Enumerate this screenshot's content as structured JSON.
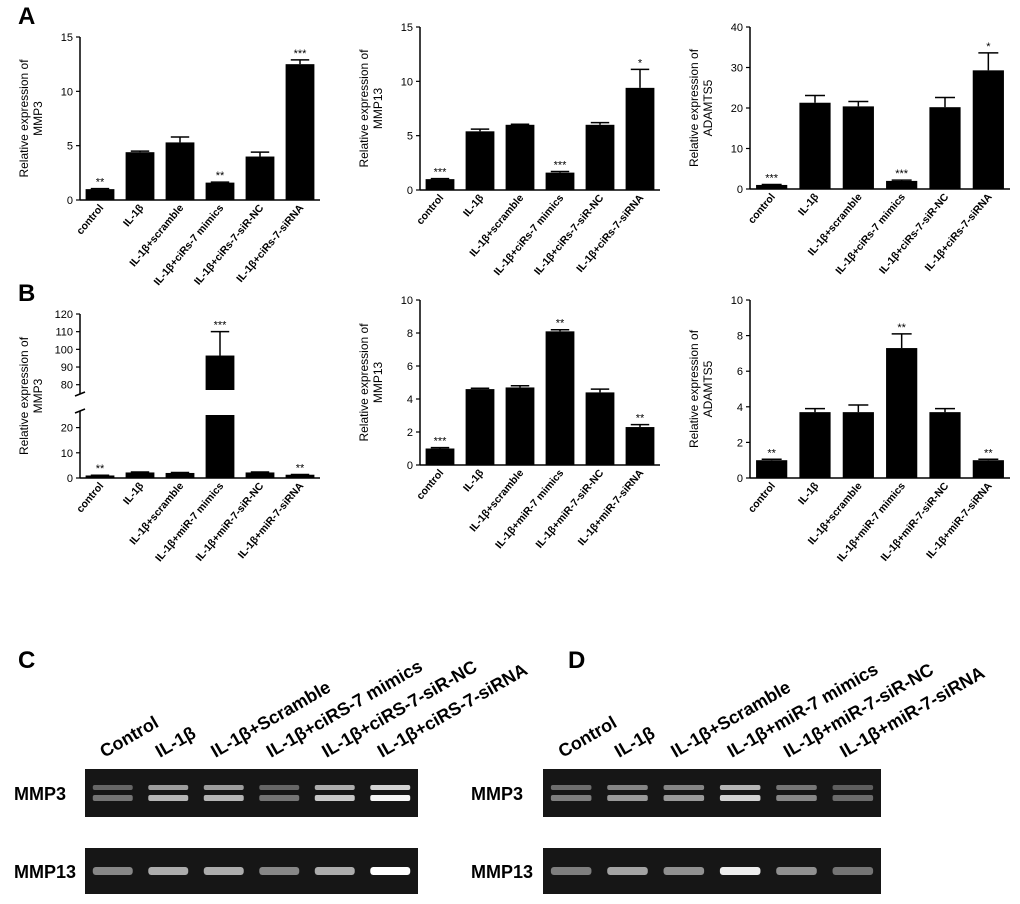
{
  "panel_labels": {
    "A": "A",
    "B": "B",
    "C": "C",
    "D": "D"
  },
  "chart_data": [
    {
      "id": "A1",
      "type": "bar",
      "ylabel": "Relative expression of MMP3",
      "ylabel_lines": [
        "Relative  expression of",
        "MMP3"
      ],
      "categories": [
        "control",
        "IL-1β",
        "IL-1β+scramble",
        "IL-1β+ciRs-7 mimics",
        "IL-1β+ciRs-7-siR-NC",
        "IL-1β+ciRs-7-siRNA"
      ],
      "values": [
        1.0,
        4.4,
        5.3,
        1.6,
        4.0,
        12.5
      ],
      "errors": [
        0.05,
        0.1,
        0.5,
        0.05,
        0.4,
        0.4
      ],
      "sig": [
        "**",
        "",
        "",
        "**",
        "",
        "***"
      ],
      "ylim": [
        0,
        15
      ],
      "yticks": [
        0,
        5,
        10,
        15
      ],
      "axis_break": null
    },
    {
      "id": "A2",
      "type": "bar",
      "ylabel": "Relative expression of MMP13",
      "ylabel_lines": [
        "Relative  expression of",
        "MMP13"
      ],
      "categories": [
        "control",
        "IL-1β",
        "IL-1β+scramble",
        "IL-1β+ciRs-7 mimics",
        "IL-1β+ciRs-7-siR-NC",
        "IL-1β+ciRs-7-siRNA"
      ],
      "values": [
        1.0,
        5.4,
        6.0,
        1.6,
        6.0,
        9.4
      ],
      "errors": [
        0.05,
        0.2,
        0.05,
        0.1,
        0.2,
        1.7
      ],
      "sig": [
        "***",
        "",
        "",
        "***",
        "",
        "*"
      ],
      "ylim": [
        0,
        15
      ],
      "yticks": [
        0,
        5,
        10,
        15
      ],
      "axis_break": null
    },
    {
      "id": "A3",
      "type": "bar",
      "ylabel": "Relative expression of ADAMTS5",
      "ylabel_lines": [
        "Relative  expression of",
        "ADAMTS5"
      ],
      "categories": [
        "control",
        "IL-1β",
        "IL-1β+scramble",
        "IL-1β+ciRs-7 mimics",
        "IL-1β+ciRs-7-siR-NC",
        "IL-1β+ciRs-7-siRNA"
      ],
      "values": [
        1.0,
        21.3,
        20.4,
        2.0,
        20.2,
        29.3
      ],
      "errors": [
        0.1,
        1.8,
        1.2,
        0.2,
        2.4,
        4.3
      ],
      "sig": [
        "***",
        "",
        "",
        "***",
        "",
        "*"
      ],
      "ylim": [
        0,
        40
      ],
      "yticks": [
        0,
        10,
        20,
        30,
        40
      ],
      "axis_break": null
    },
    {
      "id": "B1",
      "type": "bar",
      "ylabel": "Relative expression of MMP3",
      "ylabel_lines": [
        "Relative  expression of",
        "MMP3"
      ],
      "categories": [
        "control",
        "IL-1β",
        "IL-1β+scramble",
        "IL-1β+miR-7 mimics",
        "IL-1β+miR-7-siR-NC",
        "IL-1β+miR-7-siRNA"
      ],
      "values": [
        1.0,
        2.2,
        2.0,
        96.5,
        2.2,
        1.3
      ],
      "errors": [
        0.1,
        0.2,
        0.2,
        13.5,
        0.2,
        0.1
      ],
      "sig": [
        "**",
        "",
        "",
        "***",
        "",
        "**"
      ],
      "ylim": [
        0,
        120
      ],
      "yticks": [
        0,
        10,
        20,
        80,
        90,
        100,
        110,
        120
      ],
      "axis_break": {
        "low": [
          0,
          25
        ],
        "high": [
          77,
          120
        ]
      }
    },
    {
      "id": "B2",
      "type": "bar",
      "ylabel": "Relative expression of MMP13",
      "ylabel_lines": [
        "Relative  expression of",
        "MMP13"
      ],
      "categories": [
        "control",
        "IL-1β",
        "IL-1β+scramble",
        "IL-1β+miR-7 mimics",
        "IL-1β+miR-7-siR-NC",
        "IL-1β+miR-7-siRNA"
      ],
      "values": [
        1.0,
        4.6,
        4.7,
        8.1,
        4.4,
        2.3
      ],
      "errors": [
        0.05,
        0.05,
        0.1,
        0.1,
        0.2,
        0.15
      ],
      "sig": [
        "***",
        "",
        "",
        "**",
        "",
        "**"
      ],
      "ylim": [
        0,
        10
      ],
      "yticks": [
        0,
        2,
        4,
        6,
        8,
        10
      ],
      "axis_break": null
    },
    {
      "id": "B3",
      "type": "bar",
      "ylabel": "Relative expression of ADAMTS5",
      "ylabel_lines": [
        "Relative  expression of",
        "ADAMTS5"
      ],
      "categories": [
        "control",
        "IL-1β",
        "IL-1β+scramble",
        "IL-1β+miR-7 mimics",
        "IL-1β+miR-7-siR-NC",
        "IL-1β+miR-7-siRNA"
      ],
      "values": [
        1.0,
        3.7,
        3.7,
        7.3,
        3.7,
        1.0
      ],
      "errors": [
        0.05,
        0.2,
        0.4,
        0.8,
        0.2,
        0.05
      ],
      "sig": [
        "**",
        "",
        "",
        "**",
        "",
        "**"
      ],
      "ylim": [
        0,
        10
      ],
      "yticks": [
        0,
        2,
        4,
        6,
        8,
        10
      ],
      "axis_break": null
    }
  ],
  "gels": [
    {
      "id": "C",
      "lanes": [
        "Control",
        "IL-1β",
        "IL-1β+Scramble",
        "IL-1β+ciRS-7 mimics",
        "IL-1β+ciRS-7-siR-NC",
        "IL-1β+ciRS-7-siRNA"
      ],
      "rows": [
        {
          "name": "MMP3",
          "intensity": [
            0.25,
            0.6,
            0.6,
            0.25,
            0.7,
            0.95
          ]
        },
        {
          "name": "MMP13",
          "intensity": [
            0.35,
            0.55,
            0.55,
            0.35,
            0.55,
            1.0
          ]
        }
      ]
    },
    {
      "id": "D",
      "lanes": [
        "Control",
        "IL-1β",
        "IL-1β+Scramble",
        "IL-1β+miR-7 mimics",
        "IL-1β+miR-7-siR-NC",
        "IL-1β+miR-7-siRNA"
      ],
      "rows": [
        {
          "name": "MMP3",
          "intensity": [
            0.3,
            0.45,
            0.45,
            0.75,
            0.35,
            0.2
          ]
        },
        {
          "name": "MMP13",
          "intensity": [
            0.3,
            0.5,
            0.4,
            0.9,
            0.4,
            0.25
          ]
        }
      ]
    }
  ]
}
